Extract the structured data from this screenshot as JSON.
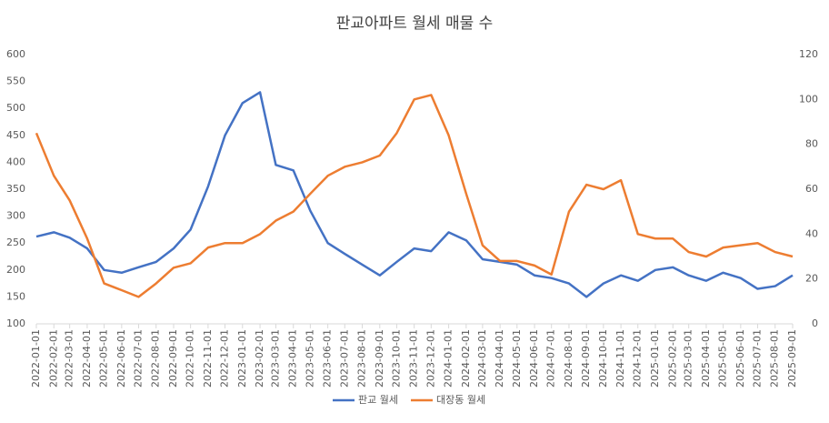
{
  "chart_data": {
    "type": "line",
    "title": "판교아파트 월세 매물 수",
    "x": [
      "2022-01-01",
      "2022-02-01",
      "2022-03-01",
      "2022-04-01",
      "2022-05-01",
      "2022-06-01",
      "2022-07-01",
      "2022-08-01",
      "2022-09-01",
      "2022-10-01",
      "2022-11-01",
      "2022-12-01",
      "2023-01-01",
      "2023-02-01",
      "2023-03-01",
      "2023-04-01",
      "2023-05-01",
      "2023-06-01",
      "2023-07-01",
      "2023-08-01",
      "2023-09-01",
      "2023-10-01",
      "2023-11-01",
      "2023-12-01",
      "2024-01-01",
      "2024-02-01",
      "2024-03-01",
      "2024-04-01",
      "2024-05-01",
      "2024-06-01",
      "2024-07-01",
      "2024-08-01",
      "2024-09-01",
      "2024-10-01",
      "2024-11-01",
      "2024-12-01",
      "2025-01-01",
      "2025-02-01",
      "2025-03-01",
      "2025-04-01",
      "2025-05-01",
      "2025-06-01",
      "2025-07-01",
      "2025-08-01",
      "2025-09-01"
    ],
    "series": [
      {
        "name": "판교 월세",
        "color": "#4472c4",
        "axis": "y",
        "values": [
          262,
          270,
          260,
          240,
          200,
          195,
          205,
          215,
          240,
          275,
          355,
          450,
          510,
          530,
          395,
          385,
          310,
          250,
          230,
          210,
          190,
          215,
          240,
          235,
          270,
          255,
          220,
          215,
          210,
          190,
          185,
          175,
          150,
          175,
          190,
          180,
          200,
          205,
          190,
          180,
          195,
          185,
          165,
          170,
          190
        ]
      },
      {
        "name": "대장동 월세",
        "color": "#ed7d31",
        "axis": "y2",
        "values": [
          85,
          66,
          55,
          38,
          18,
          15,
          12,
          18,
          25,
          27,
          34,
          36,
          36,
          40,
          46,
          50,
          58,
          66,
          70,
          72,
          75,
          85,
          100,
          102,
          84,
          58,
          35,
          28,
          28,
          26,
          22,
          50,
          62,
          60,
          64,
          40,
          38,
          38,
          32,
          30,
          34,
          35,
          36,
          32,
          30
        ]
      }
    ],
    "ylim": [
      100,
      600
    ],
    "yticks": [
      100,
      150,
      200,
      250,
      300,
      350,
      400,
      450,
      500,
      550,
      600
    ],
    "y2lim": [
      0,
      120
    ],
    "y2ticks": [
      0,
      20,
      40,
      60,
      80,
      100,
      120
    ],
    "legend": "bottom"
  }
}
